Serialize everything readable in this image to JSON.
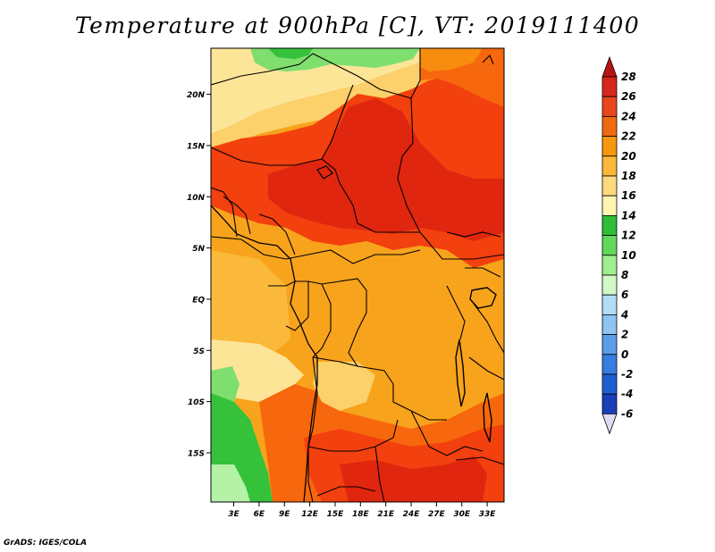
{
  "title": "Temperature at 900hPa [C], VT: 2019111400",
  "footer": "GrADS: IGES/COLA",
  "map": {
    "lat_labels": [
      "20N",
      "15N",
      "10N",
      "5N",
      "EQ",
      "5S",
      "10S",
      "15S"
    ],
    "lon_labels": [
      "3E",
      "6E",
      "9E",
      "12E",
      "15E",
      "18E",
      "21E",
      "24E",
      "27E",
      "30E",
      "33E"
    ],
    "lat_values": [
      20,
      15,
      10,
      5,
      0,
      -5,
      -10,
      -15
    ],
    "lon_values": [
      3,
      6,
      9,
      12,
      15,
      18,
      21,
      24,
      27,
      30,
      33
    ],
    "lat_range": [
      -19.8,
      24.5
    ],
    "lon_range": [
      0.3,
      35.0
    ]
  },
  "colorbar": {
    "labels": [
      "28",
      "26",
      "24",
      "22",
      "20",
      "18",
      "16",
      "14",
      "12",
      "10",
      "8",
      "6",
      "4",
      "2",
      "0",
      "-2",
      "-4",
      "-6"
    ],
    "colors": [
      "#a50f0f",
      "#d7261e",
      "#e8461b",
      "#f06a10",
      "#f7970f",
      "#fbb73a",
      "#fdd87d",
      "#fff4b0",
      "#2fbd3a",
      "#61d85a",
      "#a0ee90",
      "#d2f8c8",
      "#b3ddf6",
      "#8ec3f2",
      "#5a9ee8",
      "#367ee0",
      "#1e5ed0",
      "#1a3fb8",
      "#102a8a",
      "#0b0b58"
    ],
    "top_arrow_color": "#b81414",
    "bottom_arrow_color": "#dcdcf2"
  },
  "field_colors": {
    "c26": "#e0260f",
    "c25": "#f2400e",
    "c24": "#f7670d",
    "c23": "#f78c0f",
    "c22": "#f8a31c",
    "c21": "#fbb93b",
    "c20": "#fcd06a",
    "c19": "#fde598",
    "green_dark": "#35c23a",
    "green_mid": "#7ede6e",
    "green_light": "#b5f2a8"
  }
}
